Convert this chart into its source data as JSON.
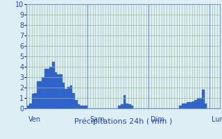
{
  "title": "Précipitations 24h ( mm )",
  "background_color": "#ddeef5",
  "plot_bg_color": "#ddeef5",
  "bar_color": "#3366cc",
  "bar_edge_color": "#2255bb",
  "ylim": [
    0,
    10
  ],
  "yticks": [
    0,
    1,
    2,
    3,
    4,
    5,
    6,
    7,
    8,
    9,
    10
  ],
  "day_labels": [
    "Ven",
    "Sam",
    "Dim",
    "Lun"
  ],
  "day_positions": [
    0,
    24,
    48,
    72
  ],
  "values": [
    0.3,
    0.5,
    1.4,
    1.5,
    2.6,
    2.6,
    3.0,
    3.8,
    3.8,
    4.0,
    4.5,
    3.5,
    3.3,
    3.3,
    2.5,
    1.9,
    2.1,
    2.2,
    1.5,
    0.8,
    0.4,
    0.3,
    0.3,
    0.3,
    0.0,
    0.0,
    0.0,
    0.0,
    0.0,
    0.0,
    0.0,
    0.0,
    0.0,
    0.0,
    0.0,
    0.0,
    0.3,
    0.4,
    1.3,
    0.5,
    0.4,
    0.3,
    0.0,
    0.0,
    0.0,
    0.0,
    0.0,
    0.0,
    0.0,
    0.0,
    0.0,
    0.0,
    0.0,
    0.0,
    0.0,
    0.0,
    0.0,
    0.0,
    0.0,
    0.0,
    0.3,
    0.5,
    0.5,
    0.6,
    0.6,
    0.7,
    0.8,
    1.0,
    1.0,
    1.8,
    0.5,
    0.0,
    0.0,
    0.0,
    0.0,
    0.0
  ],
  "grid_color": "#99bb99",
  "vline_color": "#7799bb",
  "title_color": "#2244bb",
  "tick_color": "#2244bb",
  "title_fontsize": 8,
  "tick_fontsize": 7,
  "label_fontsize": 7
}
